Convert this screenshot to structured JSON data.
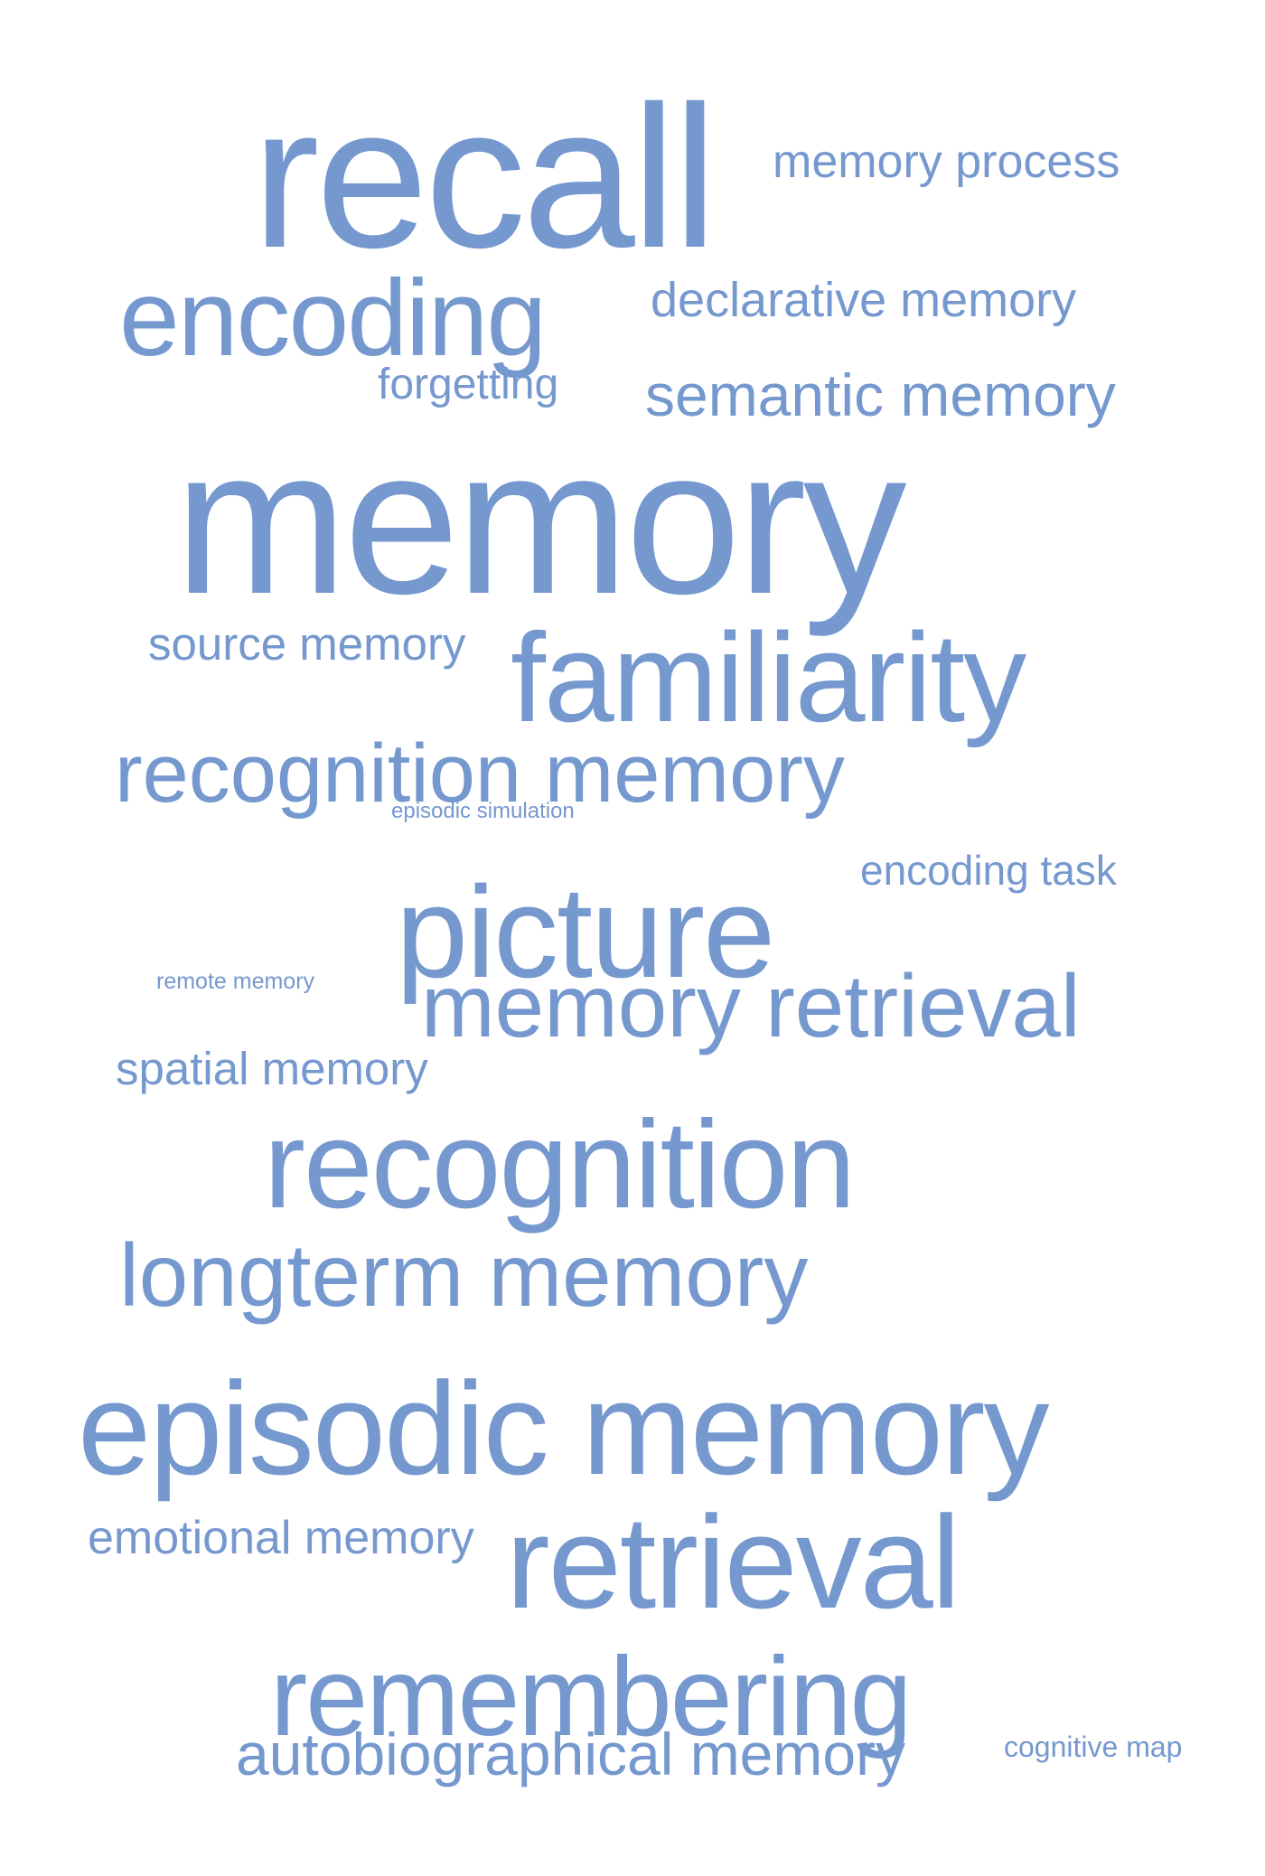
{
  "accent_color": "#7598cf",
  "words": [
    {
      "id": "recall",
      "text": "recall"
    },
    {
      "id": "memory-process",
      "text": "memory process"
    },
    {
      "id": "encoding",
      "text": "encoding"
    },
    {
      "id": "declarative-memory",
      "text": "declarative memory"
    },
    {
      "id": "forgetting",
      "text": "forgetting"
    },
    {
      "id": "semantic-memory",
      "text": "semantic memory"
    },
    {
      "id": "memory",
      "text": "memory"
    },
    {
      "id": "source-memory",
      "text": "source memory"
    },
    {
      "id": "familiarity",
      "text": "familiarity"
    },
    {
      "id": "recognition-memory",
      "text": "recognition memory"
    },
    {
      "id": "episodic-simulation",
      "text": "episodic simulation"
    },
    {
      "id": "encoding-task",
      "text": "encoding task"
    },
    {
      "id": "picture",
      "text": "picture"
    },
    {
      "id": "remote-memory",
      "text": "remote memory"
    },
    {
      "id": "memory-retrieval",
      "text": "memory retrieval"
    },
    {
      "id": "spatial-memory",
      "text": "spatial memory"
    },
    {
      "id": "recognition",
      "text": "recognition"
    },
    {
      "id": "longterm-memory",
      "text": "longterm memory"
    },
    {
      "id": "episodic-memory",
      "text": "episodic memory"
    },
    {
      "id": "emotional-memory",
      "text": "emotional memory"
    },
    {
      "id": "retrieval",
      "text": "retrieval"
    },
    {
      "id": "remembering",
      "text": "remembering"
    },
    {
      "id": "autobiographical-memory",
      "text": "autobiographical memory"
    },
    {
      "id": "cognitive-map",
      "text": "cognitive map"
    }
  ]
}
